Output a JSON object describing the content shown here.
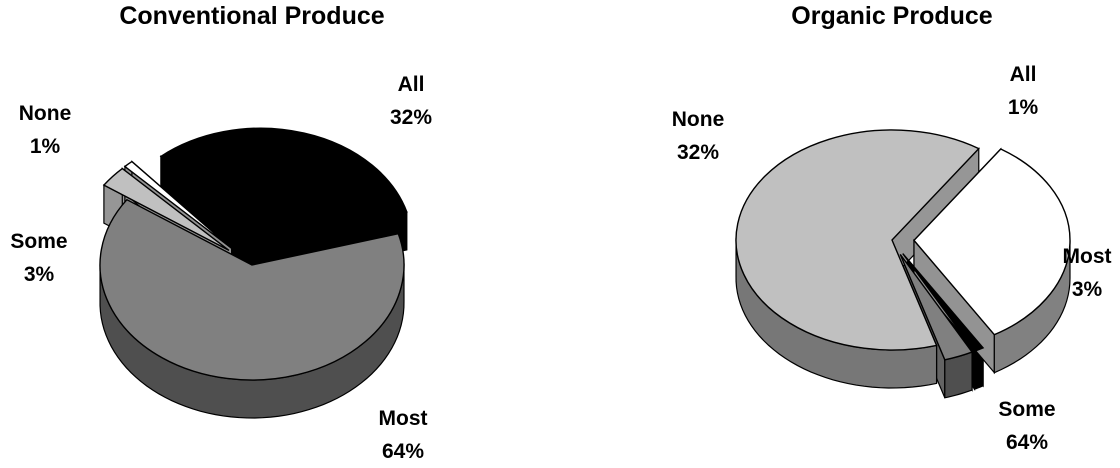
{
  "chart_data": [
    {
      "type": "pie",
      "title": "Conventional Produce",
      "slices": [
        {
          "label": "All",
          "value": 32,
          "display": "32%",
          "color": "#000000",
          "exploded": true
        },
        {
          "label": "Most",
          "value": 64,
          "display": "64%",
          "color": "#808080",
          "exploded": false
        },
        {
          "label": "Some",
          "value": 3,
          "display": "3%",
          "color": "#c0c0c0",
          "exploded": true
        },
        {
          "label": "None",
          "value": 1,
          "display": "1%",
          "color": "#ffffff",
          "exploded": true
        }
      ]
    },
    {
      "type": "pie",
      "title": "Organic Produce",
      "slices": [
        {
          "label": "All",
          "value": 1,
          "display": "1%",
          "color": "#000000",
          "exploded": true
        },
        {
          "label": "Most",
          "value": 3,
          "display": "3%",
          "color": "#808080",
          "exploded": true
        },
        {
          "label": "Some",
          "value": 64,
          "display": "64%",
          "color": "#c0c0c0",
          "exploded": false
        },
        {
          "label": "None",
          "value": 32,
          "display": "32%",
          "color": "#ffffff",
          "exploded": true
        }
      ]
    }
  ]
}
